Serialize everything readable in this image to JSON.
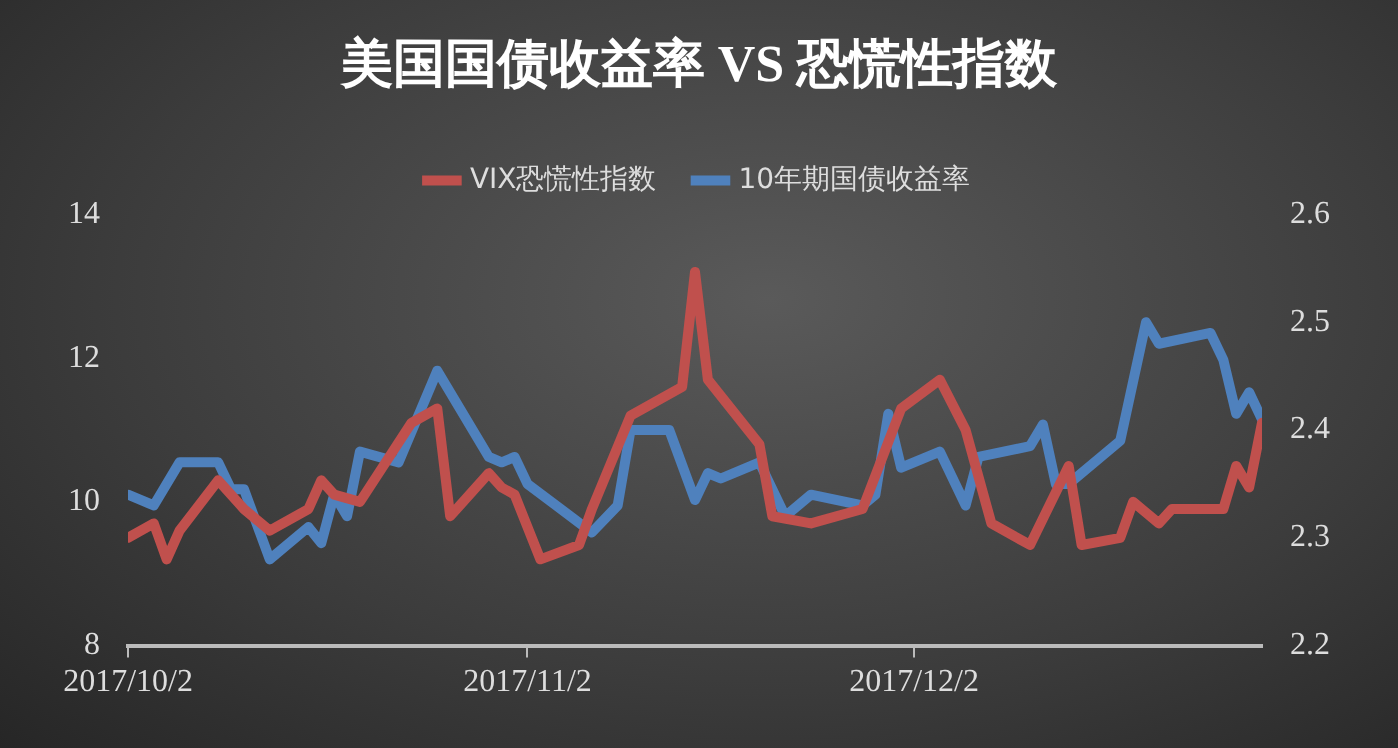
{
  "chart_data": {
    "type": "line",
    "title": "美国国债收益率 VS 恐慌性指数",
    "xlim": [
      "2017-10-02",
      "2017-12-29"
    ],
    "xticks": [
      {
        "value": "2017-10-02",
        "label": "2017/10/2"
      },
      {
        "value": "2017-11-02",
        "label": "2017/11/2"
      },
      {
        "value": "2017-12-02",
        "label": "2017/12/2"
      }
    ],
    "ylim": [
      8,
      14
    ],
    "yticks": [
      8,
      10,
      12,
      14
    ],
    "y2lim": [
      2.2,
      2.6
    ],
    "y2ticks": [
      2.2,
      2.3,
      2.4,
      2.5,
      2.6
    ],
    "grid": false,
    "legend": "top",
    "marker": "none",
    "line_style": "solid",
    "series": [
      {
        "name": "VIX恐慌性指数",
        "color": "#c0504d",
        "x": [
          "2017-10-02",
          "2017-10-04",
          "2017-10-05",
          "2017-10-06",
          "2017-10-09",
          "2017-10-11",
          "2017-10-13",
          "2017-10-16",
          "2017-10-17",
          "2017-10-18",
          "2017-10-20",
          "2017-10-24",
          "2017-10-26",
          "2017-10-27",
          "2017-10-30",
          "2017-10-31",
          "2017-11-01",
          "2017-11-03",
          "2017-11-06",
          "2017-11-07",
          "2017-11-10",
          "2017-11-14",
          "2017-11-15",
          "2017-11-16",
          "2017-11-20",
          "2017-11-21",
          "2017-11-24",
          "2017-11-28",
          "2017-12-01",
          "2017-12-04",
          "2017-12-06",
          "2017-12-08",
          "2017-12-11",
          "2017-12-14",
          "2017-12-15",
          "2017-12-18",
          "2017-12-19",
          "2017-12-21",
          "2017-12-22",
          "2017-12-26",
          "2017-12-27",
          "2017-12-28",
          "2017-12-29"
        ],
        "values": [
          9.5,
          9.7,
          9.2,
          9.6,
          10.3,
          9.9,
          9.6,
          9.9,
          10.3,
          10.1,
          10.0,
          11.1,
          11.3,
          9.8,
          10.4,
          10.2,
          10.1,
          9.2,
          9.4,
          9.9,
          11.2,
          11.6,
          13.2,
          11.7,
          10.8,
          9.8,
          9.7,
          9.9,
          11.3,
          11.7,
          11.0,
          9.7,
          9.4,
          10.5,
          9.4,
          9.5,
          10.0,
          9.7,
          9.9,
          9.9,
          10.5,
          10.2,
          11.1
        ]
      },
      {
        "name": "10年期国债收益率",
        "color": "#4f81bd",
        "axis": "y2",
        "x": [
          "2017-10-02",
          "2017-10-04",
          "2017-10-06",
          "2017-10-09",
          "2017-10-10",
          "2017-10-11",
          "2017-10-13",
          "2017-10-16",
          "2017-10-17",
          "2017-10-18",
          "2017-10-19",
          "2017-10-20",
          "2017-10-23",
          "2017-10-26",
          "2017-10-30",
          "2017-10-31",
          "2017-11-01",
          "2017-11-02",
          "2017-11-07",
          "2017-11-09",
          "2017-11-10",
          "2017-11-13",
          "2017-11-15",
          "2017-11-16",
          "2017-11-17",
          "2017-11-20",
          "2017-11-22",
          "2017-11-24",
          "2017-11-28",
          "2017-11-29",
          "2017-11-30",
          "2017-12-01",
          "2017-12-04",
          "2017-12-06",
          "2017-12-07",
          "2017-12-11",
          "2017-12-12",
          "2017-12-13",
          "2017-12-14",
          "2017-12-18",
          "2017-12-20",
          "2017-12-21",
          "2017-12-25",
          "2017-12-26",
          "2017-12-27",
          "2017-12-28",
          "2017-12-29"
        ],
        "values": [
          2.34,
          2.33,
          2.37,
          2.37,
          2.345,
          2.345,
          2.28,
          2.31,
          2.295,
          2.34,
          2.32,
          2.38,
          2.37,
          2.455,
          2.375,
          2.37,
          2.375,
          2.35,
          2.305,
          2.33,
          2.4,
          2.4,
          2.335,
          2.36,
          2.355,
          2.37,
          2.32,
          2.34,
          2.33,
          2.34,
          2.415,
          2.365,
          2.38,
          2.33,
          2.375,
          2.385,
          2.405,
          2.35,
          2.35,
          2.39,
          2.5,
          2.48,
          2.49,
          2.465,
          2.415,
          2.435,
          2.41
        ]
      }
    ]
  }
}
